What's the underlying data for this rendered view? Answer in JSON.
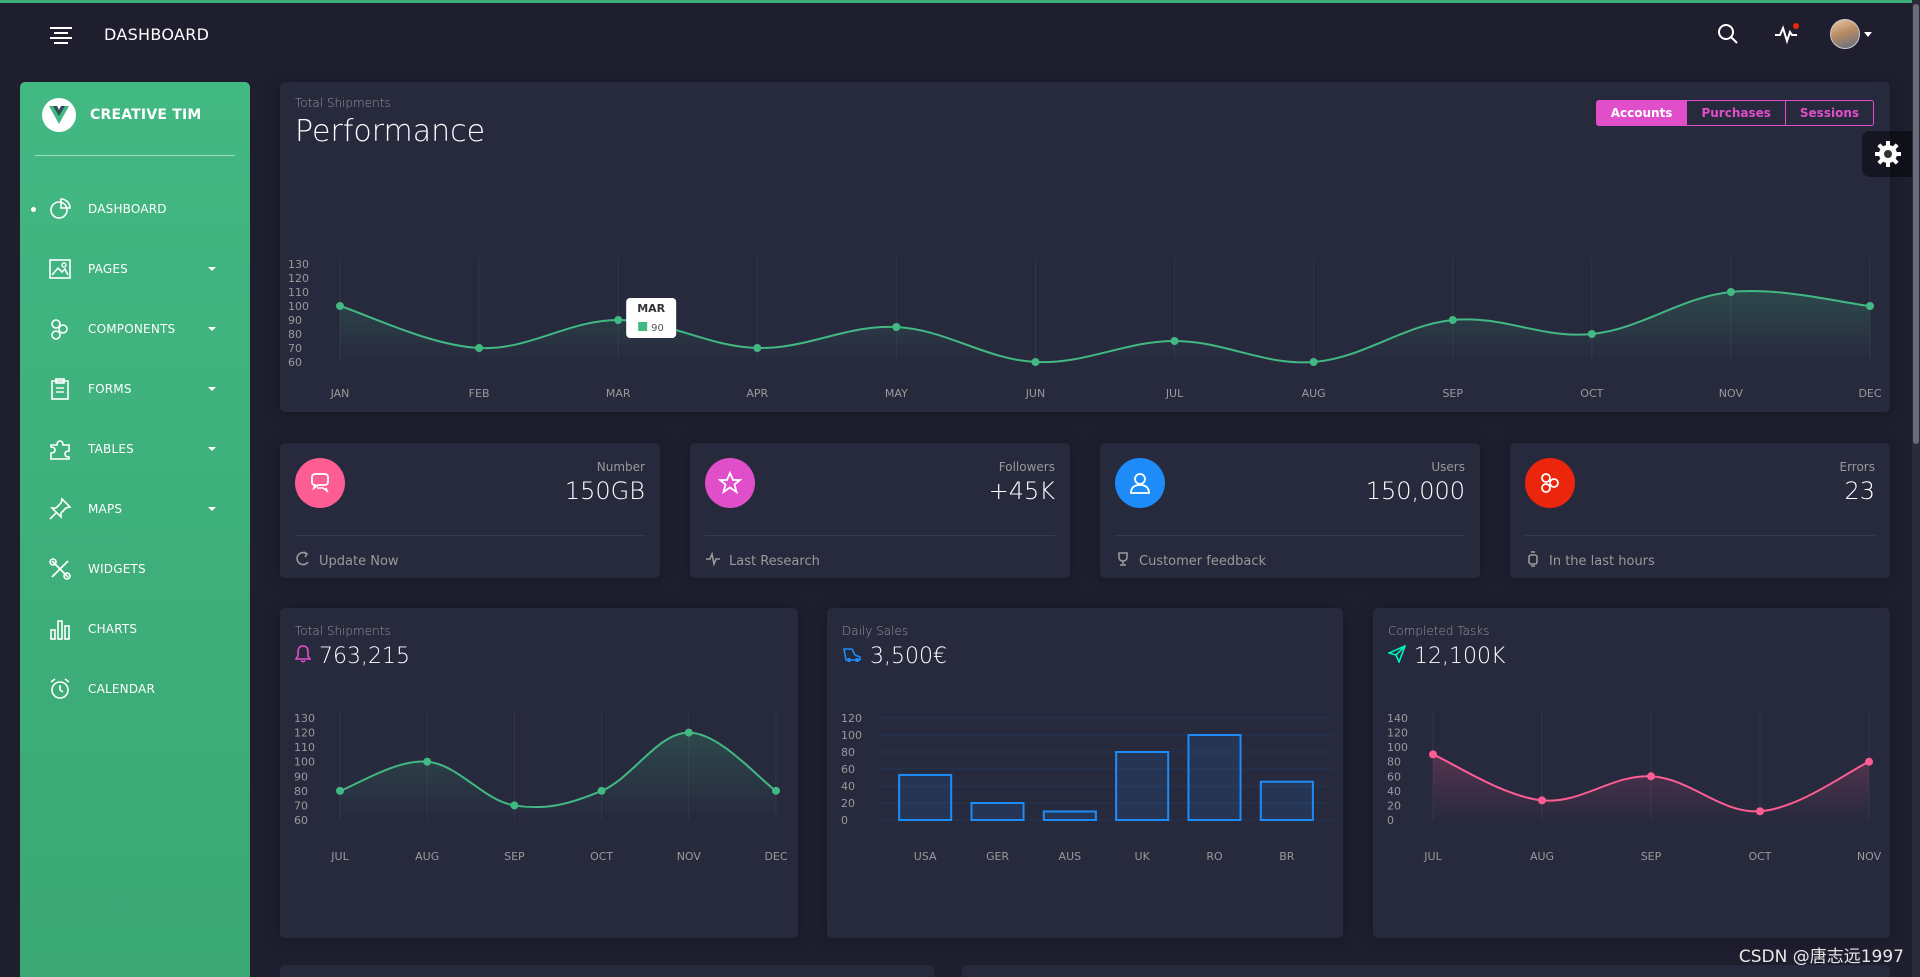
{
  "navbar": {
    "title": "DASHBOARD",
    "icons": [
      "menu-icon",
      "search-icon",
      "activity-icon",
      "avatar"
    ]
  },
  "sidebar": {
    "brand": "CREATIVE TIM",
    "items": [
      {
        "label": "DASHBOARD",
        "icon": "pie-chart-icon",
        "active": true,
        "caret": false
      },
      {
        "label": "PAGES",
        "icon": "image-icon",
        "active": false,
        "caret": true
      },
      {
        "label": "COMPONENTS",
        "icon": "components-icon",
        "active": false,
        "caret": true
      },
      {
        "label": "FORMS",
        "icon": "clipboard-icon",
        "active": false,
        "caret": true
      },
      {
        "label": "TABLES",
        "icon": "puzzle-icon",
        "active": false,
        "caret": true
      },
      {
        "label": "MAPS",
        "icon": "pin-icon",
        "active": false,
        "caret": true
      },
      {
        "label": "WIDGETS",
        "icon": "tools-icon",
        "active": false,
        "caret": false
      },
      {
        "label": "CHARTS",
        "icon": "bar-chart-icon",
        "active": false,
        "caret": false
      },
      {
        "label": "CALENDAR",
        "icon": "alarm-clock-icon",
        "active": false,
        "caret": false
      }
    ]
  },
  "performance": {
    "category": "Total Shipments",
    "title": "Performance",
    "buttons": [
      "Accounts",
      "Purchases",
      "Sessions"
    ],
    "tooltip": {
      "label": "MAR",
      "value": "90"
    }
  },
  "stats": [
    {
      "label": "Number",
      "value": "150GB",
      "footer": "Update Now",
      "color": "#fd5d93",
      "icon": "chat-bubbles-icon",
      "footer_icon": "refresh-icon"
    },
    {
      "label": "Followers",
      "value": "+45K",
      "footer": "Last Research",
      "color": "#e14eca",
      "icon": "star-icon",
      "footer_icon": "pulse-icon"
    },
    {
      "label": "Users",
      "value": "150,000",
      "footer": "Customer feedback",
      "color": "#1d8cf8",
      "icon": "user-icon",
      "footer_icon": "trophy-icon"
    },
    {
      "label": "Errors",
      "value": "23",
      "footer": "In the last hours",
      "color": "#ec250d",
      "icon": "molecule-icon",
      "footer_icon": "watch-icon"
    }
  ],
  "small_cards": [
    {
      "category": "Total Shipments",
      "value": "763,215",
      "icon": "bell-icon"
    },
    {
      "category": "Daily Sales",
      "value": "3,500€",
      "icon": "delivery-icon"
    },
    {
      "category": "Completed Tasks",
      "value": "12,100K",
      "icon": "send-icon"
    }
  ],
  "watermark": "CSDN @唐志远1997",
  "colors": {
    "green": "#42b883",
    "pink": "#fd5d93",
    "magenta": "#e14eca",
    "blue": "#1d8cf8",
    "card": "#27293d",
    "bg": "#1e1e2f"
  },
  "chart_data": [
    {
      "type": "line",
      "title": "Performance",
      "categories": [
        "JAN",
        "FEB",
        "MAR",
        "APR",
        "MAY",
        "JUN",
        "JUL",
        "AUG",
        "SEP",
        "OCT",
        "NOV",
        "DEC"
      ],
      "values": [
        100,
        70,
        90,
        70,
        85,
        60,
        75,
        60,
        90,
        80,
        110,
        100
      ],
      "y_ticks": [
        60,
        70,
        80,
        90,
        100,
        110,
        120,
        130
      ],
      "ylim": [
        60,
        130
      ],
      "color": "#42b883"
    },
    {
      "type": "line",
      "title": "Total Shipments",
      "categories": [
        "JUL",
        "AUG",
        "SEP",
        "OCT",
        "NOV",
        "DEC"
      ],
      "values": [
        80,
        100,
        70,
        80,
        120,
        80
      ],
      "y_ticks": [
        60,
        70,
        80,
        90,
        100,
        110,
        120,
        130
      ],
      "ylim": [
        60,
        130
      ],
      "color": "#42b883"
    },
    {
      "type": "bar",
      "title": "Daily Sales",
      "categories": [
        "USA",
        "GER",
        "AUS",
        "UK",
        "RO",
        "BR"
      ],
      "values": [
        53,
        20,
        10,
        80,
        100,
        45
      ],
      "y_ticks": [
        0,
        20,
        40,
        60,
        80,
        100,
        120
      ],
      "ylim": [
        0,
        120
      ],
      "color": "#1d8cf8"
    },
    {
      "type": "line",
      "title": "Completed Tasks",
      "categories": [
        "JUL",
        "AUG",
        "SEP",
        "OCT",
        "NOV"
      ],
      "values": [
        90,
        27,
        60,
        12,
        80
      ],
      "y_ticks": [
        0,
        20,
        40,
        60,
        80,
        100,
        120,
        140
      ],
      "ylim": [
        0,
        140
      ],
      "color": "#fd5d93"
    }
  ]
}
